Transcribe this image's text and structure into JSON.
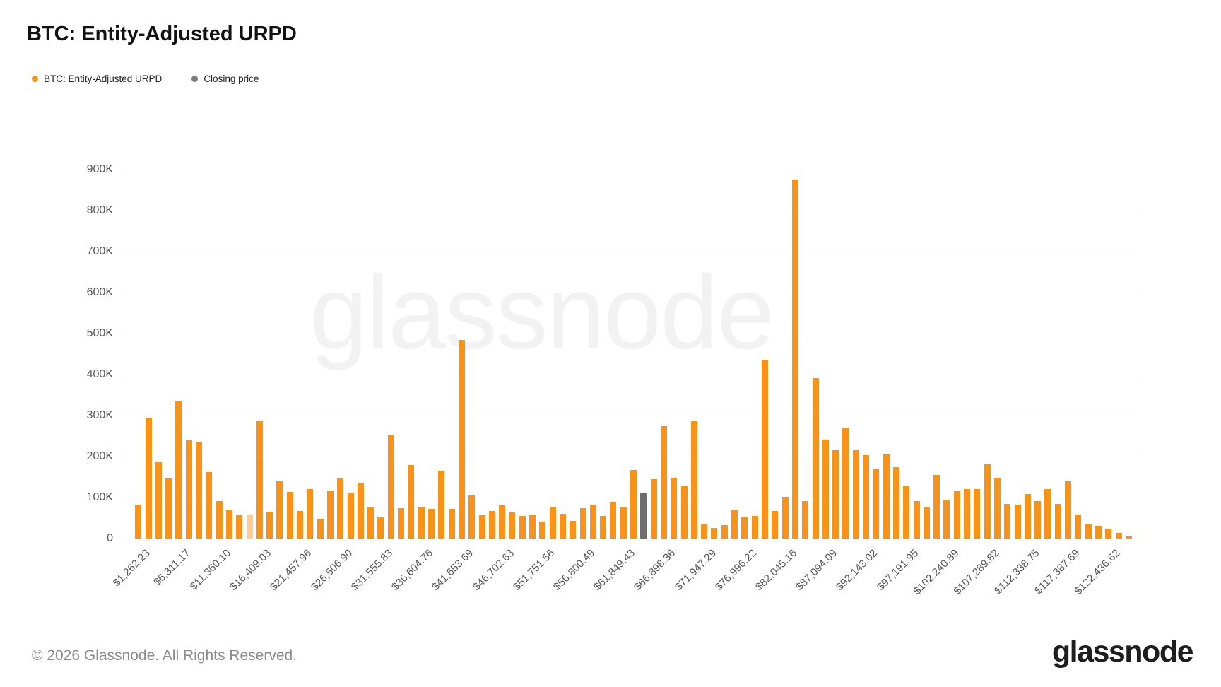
{
  "title": "BTC: Entity-Adjusted URPD",
  "legend": {
    "items": [
      {
        "label": "BTC: Entity-Adjusted URPD",
        "color": "#f7931a"
      },
      {
        "label": "Closing price",
        "color": "#7a7a7a"
      }
    ]
  },
  "watermark": "glassnode",
  "footer": {
    "copyright": "© 2026 Glassnode. All Rights Reserved.",
    "logo_text": "glassnode"
  },
  "chart_data": {
    "type": "bar",
    "title": "BTC: Entity-Adjusted URPD",
    "xlabel": "",
    "ylabel": "",
    "ylim": [
      0,
      900000
    ],
    "grid": "horizontal",
    "legend_position": "top-left",
    "y_ticks": [
      "0",
      "100K",
      "200K",
      "300K",
      "400K",
      "500K",
      "600K",
      "700K",
      "800K",
      "900K"
    ],
    "x_tick_labels": [
      "$1,262.23",
      "$6,311.17",
      "$11,360.10",
      "$16,409.03",
      "$21,457.96",
      "$26,506.90",
      "$31,555.83",
      "$36,604.76",
      "$41,653.69",
      "$46,702.63",
      "$51,751.56",
      "$56,800.49",
      "$61,849.43",
      "$66,898.36",
      "$71,947.29",
      "$76,996.22",
      "$82,045.16",
      "$87,094.09",
      "$92,143.02",
      "$97,191.95",
      "$102,240.89",
      "$107,289.82",
      "$112,338.75",
      "$117,387.69",
      "$122,436.62"
    ],
    "x_tick_every": 4,
    "price_step_per_bar": 1262.23,
    "values_thousands": [
      83,
      295,
      188,
      146,
      334,
      240,
      236,
      162,
      91,
      69,
      57,
      59,
      288,
      66,
      139,
      113,
      68,
      120,
      48,
      117,
      146,
      112,
      136,
      76,
      52,
      252,
      75,
      179,
      78,
      72,
      166,
      73,
      485,
      105,
      57,
      67,
      81,
      63,
      55,
      58,
      41,
      77,
      60,
      43,
      74,
      82,
      55,
      89,
      76,
      168,
      111,
      145,
      274,
      149,
      127,
      287,
      35,
      26,
      32,
      71,
      51,
      56,
      435,
      67,
      101,
      876,
      91,
      391,
      241,
      215,
      271,
      216,
      204,
      170,
      205,
      175,
      128,
      92,
      76,
      156,
      93,
      116,
      120,
      120,
      181,
      149,
      84,
      82,
      108,
      91,
      120,
      85,
      140,
      59,
      34,
      31,
      24,
      13,
      5
    ],
    "bar_color": "#f7931a",
    "closing_price_bar_index": 50,
    "closing_price_bar_color": "#6e6e6e",
    "faded_bar_index": 11,
    "series": [
      {
        "name": "BTC: Entity-Adjusted URPD",
        "unit": "BTC"
      },
      {
        "name": "Closing price",
        "marker": "gray bar at $64,373"
      }
    ]
  }
}
